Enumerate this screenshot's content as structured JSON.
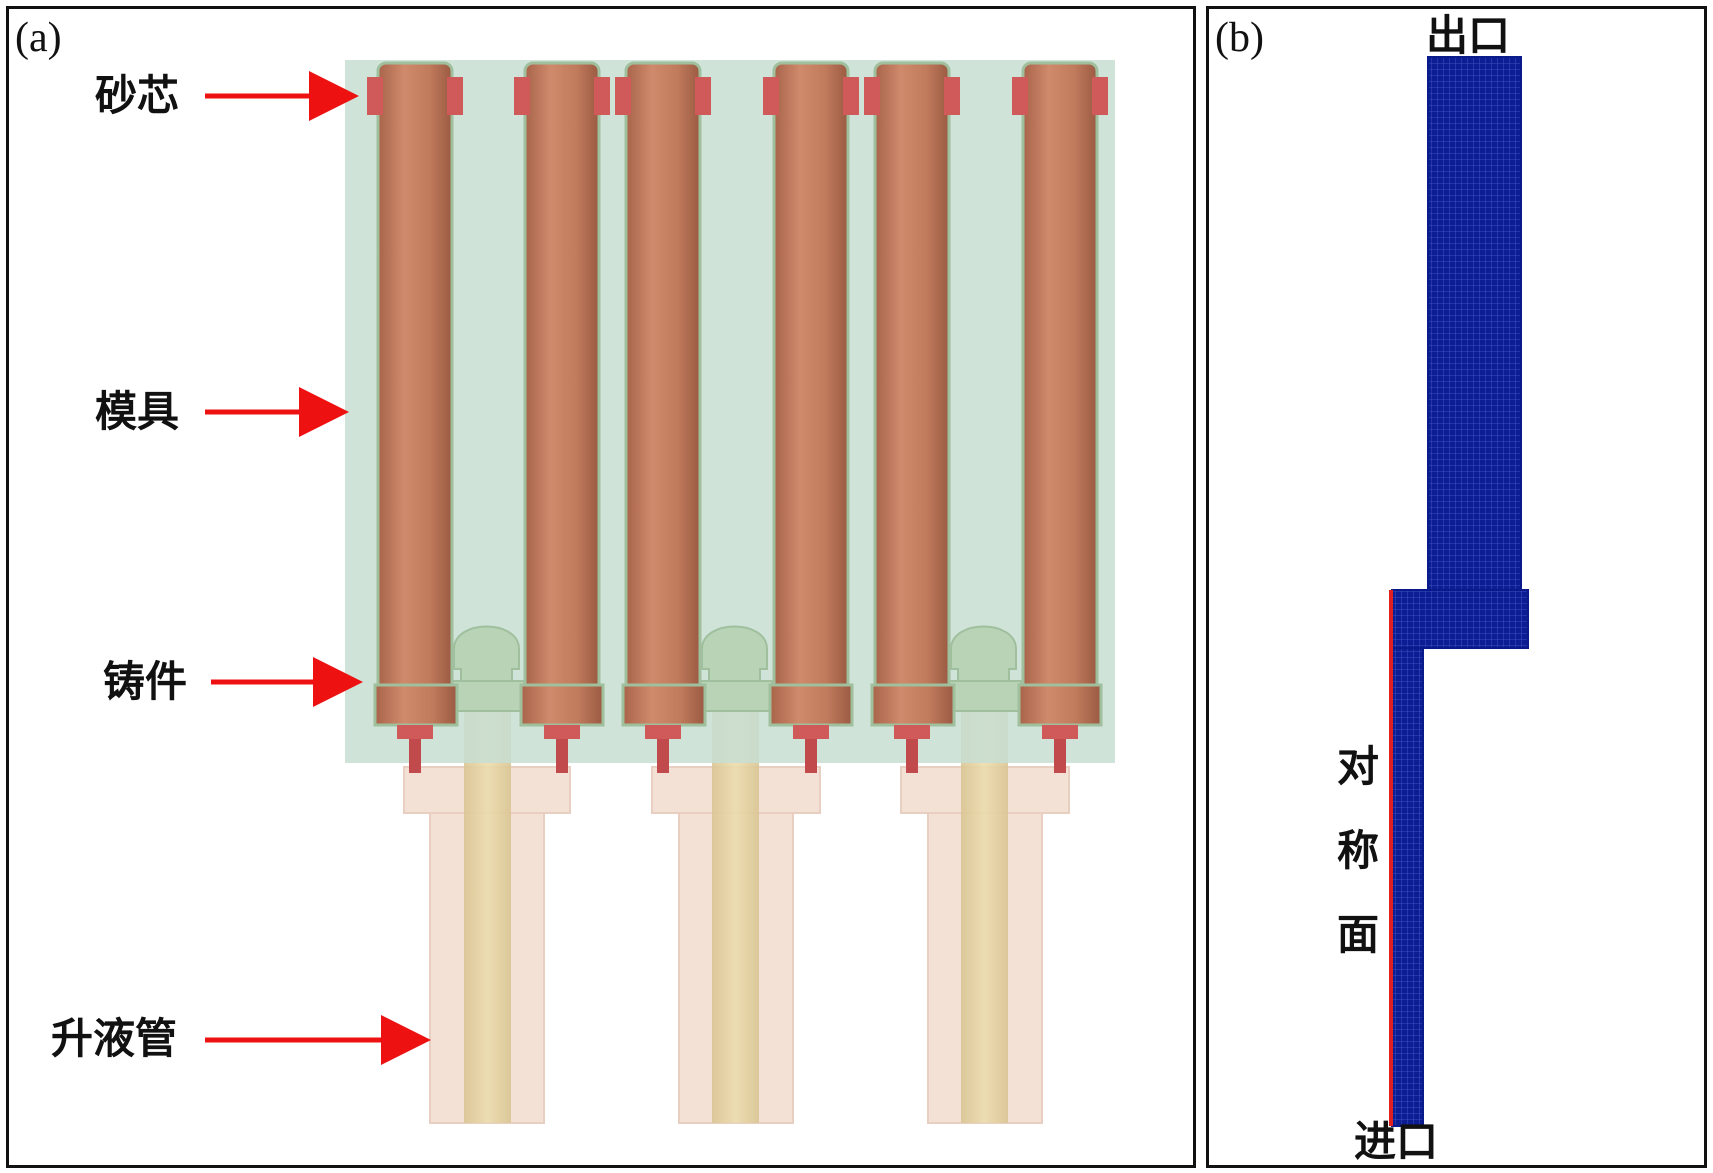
{
  "panel_a": {
    "label": "(a)",
    "callouts": {
      "sand_core": "砂芯",
      "mold": "模具",
      "casting": "铸件",
      "riser_tube": "升液管"
    }
  },
  "panel_b": {
    "label": "(b)",
    "outlet": "出口",
    "inlet": "进口",
    "symmetry_plane": "对称面"
  },
  "colors": {
    "mold": "#cfe3d8",
    "casting": "#c07a5c",
    "sand_core": "#d0595a",
    "riser_tube": "#f3ddd2",
    "riser_inner": "#e9d6a8",
    "mesh": "#0a1a8a",
    "symmetry_line": "#e02020",
    "arrow": "#ee1111"
  }
}
